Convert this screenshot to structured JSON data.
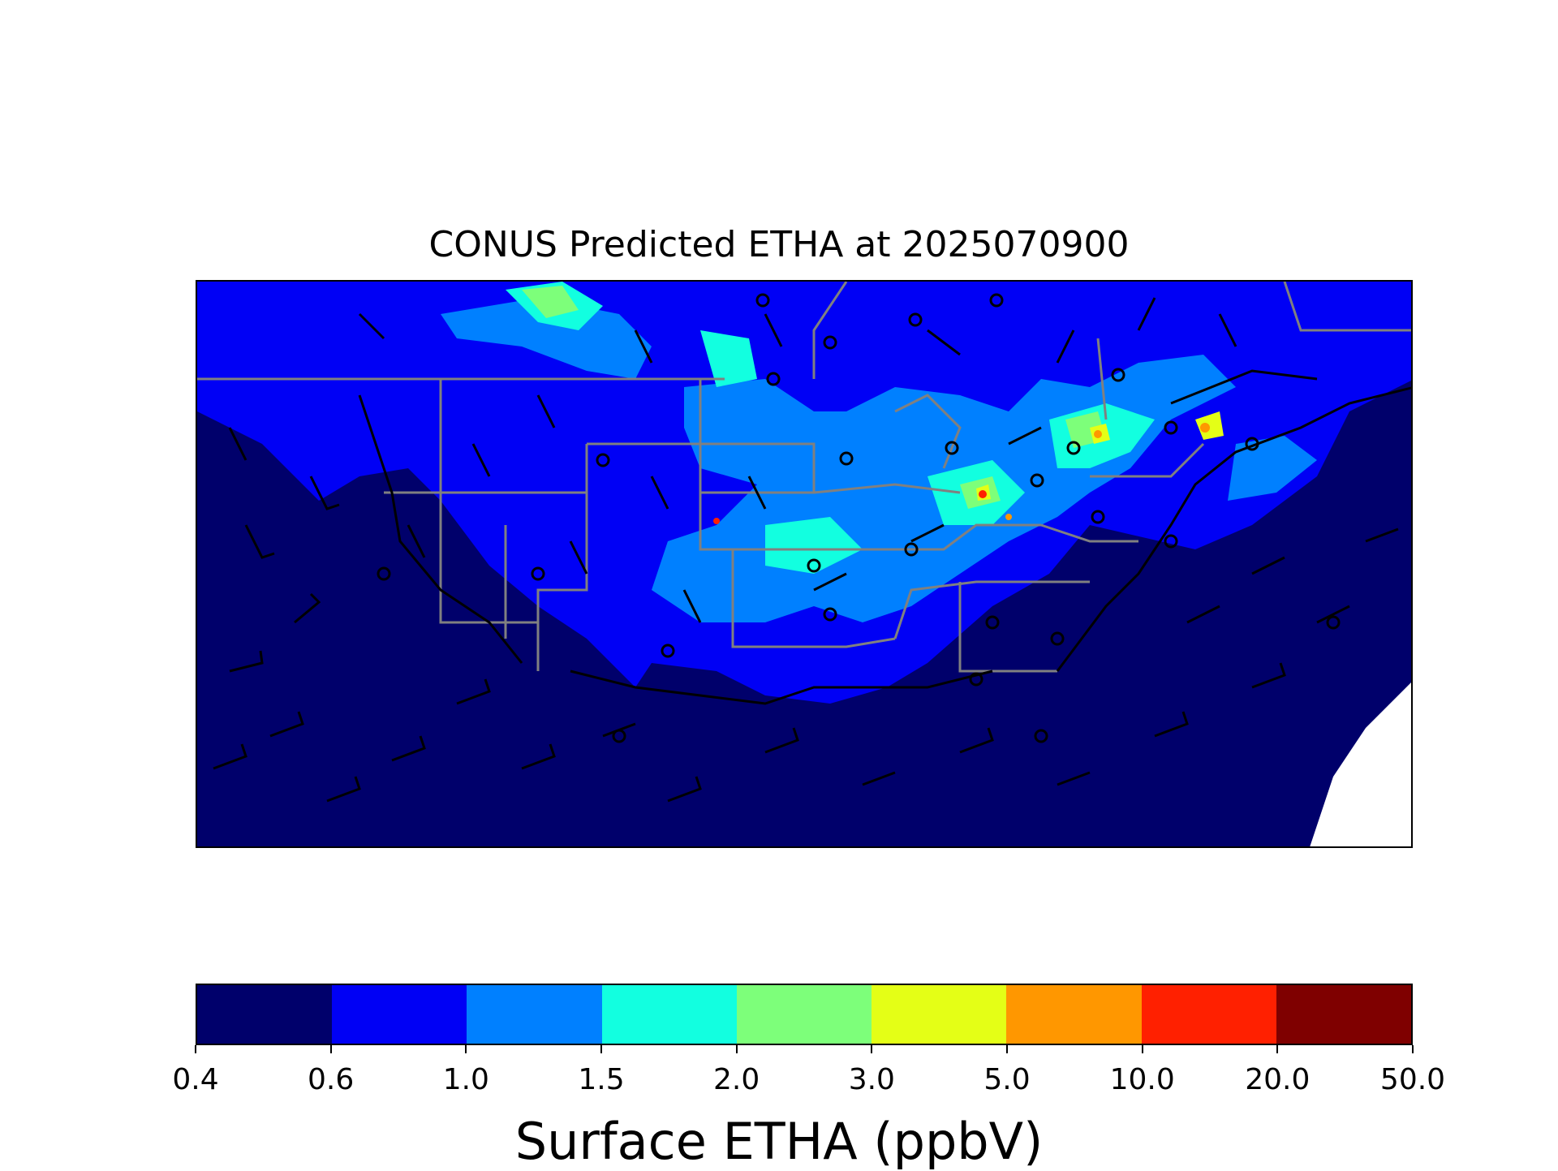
{
  "title": "CONUS Predicted ETHA at 2025070900",
  "colorbar": {
    "label": "Surface ETHA (ppbV)",
    "ticks": [
      "0.4",
      "0.6",
      "1.0",
      "1.5",
      "2.0",
      "3.0",
      "5.0",
      "10.0",
      "20.0",
      "50.0"
    ],
    "colors": [
      "#00006b",
      "#0000f5",
      "#0080ff",
      "#12ffe0",
      "#7dff7a",
      "#e4ff16",
      "#ff9700",
      "#ff2000",
      "#7f0000"
    ]
  },
  "map": {
    "variable": "Surface ETHA",
    "units": "ppbV",
    "overlays": [
      "state-boundaries",
      "coastlines",
      "wind-barbs",
      "calm-wind-circles"
    ]
  }
}
